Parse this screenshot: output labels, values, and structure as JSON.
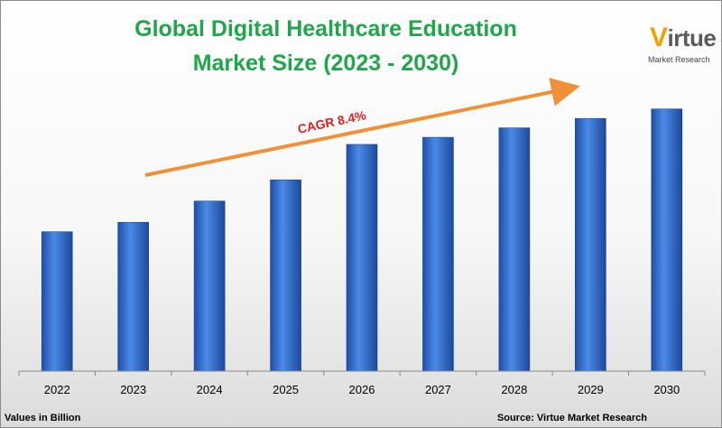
{
  "title_line1": "Global Digital Healthcare Education",
  "title_line2": "Market Size  (2023 - 2030)",
  "logo": {
    "word": "irtue",
    "letter": "V",
    "sub": "Market Research"
  },
  "annotation": "CAGR 8.4%",
  "footnote_left": "Values in Billion",
  "footnote_right": "Source: Virtue Market Research",
  "colors": {
    "title": "#1fa64a",
    "bar": "#2f6ed1",
    "arrow": "#f0913a",
    "annotation": "#e02020"
  },
  "chart_data": {
    "type": "bar",
    "categories": [
      "2022",
      "2023",
      "2024",
      "2025",
      "2026",
      "2027",
      "2028",
      "2029",
      "2030"
    ],
    "values": [
      5.9,
      6.3,
      7.2,
      8.1,
      9.6,
      9.9,
      10.3,
      10.7,
      11.1
    ],
    "title": "Global Digital Healthcare Education Market Size  (2023 - 2030)",
    "xlabel": "",
    "ylabel": "",
    "ylim": [
      0,
      13
    ],
    "grid": false,
    "legend": "none"
  }
}
